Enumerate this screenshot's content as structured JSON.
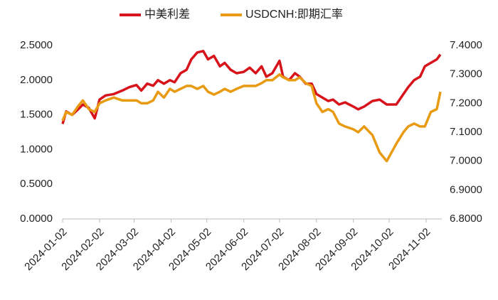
{
  "chart_data": {
    "type": "line",
    "x": [
      "2024-01-02",
      "2024-01-05",
      "2024-01-10",
      "2024-01-15",
      "2024-01-19",
      "2024-01-24",
      "2024-01-29",
      "2024-02-02",
      "2024-02-07",
      "2024-02-14",
      "2024-02-21",
      "2024-02-27",
      "2024-03-04",
      "2024-03-08",
      "2024-03-13",
      "2024-03-18",
      "2024-03-22",
      "2024-03-27",
      "2024-04-01",
      "2024-04-05",
      "2024-04-10",
      "2024-04-15",
      "2024-04-19",
      "2024-04-24",
      "2024-04-29",
      "2024-05-03",
      "2024-05-08",
      "2024-05-13",
      "2024-05-17",
      "2024-05-22",
      "2024-05-27",
      "2024-06-02",
      "2024-06-07",
      "2024-06-12",
      "2024-06-17",
      "2024-06-21",
      "2024-06-26",
      "2024-07-02",
      "2024-07-05",
      "2024-07-10",
      "2024-07-15",
      "2024-07-19",
      "2024-07-24",
      "2024-07-29",
      "2024-08-02",
      "2024-08-07",
      "2024-08-12",
      "2024-08-16",
      "2024-08-21",
      "2024-08-26",
      "2024-09-02",
      "2024-09-06",
      "2024-09-11",
      "2024-09-18",
      "2024-09-24",
      "2024-09-30",
      "2024-10-08",
      "2024-10-14",
      "2024-10-18",
      "2024-10-23",
      "2024-10-28",
      "2024-11-01",
      "2024-11-06",
      "2024-11-11",
      "2024-11-14"
    ],
    "series": [
      {
        "name": "中美利差",
        "color": "#d7141c",
        "values": [
          1.37,
          1.55,
          1.5,
          1.58,
          1.65,
          1.6,
          1.45,
          1.72,
          1.78,
          1.8,
          1.85,
          1.9,
          1.93,
          1.85,
          1.95,
          1.92,
          2.0,
          1.95,
          2.0,
          1.97,
          2.1,
          2.15,
          2.3,
          2.4,
          2.42,
          2.3,
          2.35,
          2.2,
          2.25,
          2.15,
          2.1,
          2.12,
          2.18,
          2.1,
          2.2,
          2.05,
          2.1,
          2.28,
          2.05,
          2.0,
          2.1,
          2.05,
          1.95,
          1.95,
          1.8,
          1.75,
          1.7,
          1.72,
          1.65,
          1.68,
          1.62,
          1.58,
          1.62,
          1.7,
          1.72,
          1.65,
          1.65,
          1.8,
          1.9,
          2.0,
          2.05,
          2.2,
          2.25,
          2.3,
          2.37
        ]
      },
      {
        "name": "USDCNH:即期汇率",
        "color": "#e89b12",
        "axis": "y2",
        "values": [
          7.14,
          7.17,
          7.16,
          7.19,
          7.21,
          7.18,
          7.17,
          7.2,
          7.21,
          7.22,
          7.21,
          7.21,
          7.21,
          7.2,
          7.2,
          7.21,
          7.24,
          7.22,
          7.25,
          7.24,
          7.25,
          7.26,
          7.26,
          7.25,
          7.26,
          7.24,
          7.23,
          7.24,
          7.25,
          7.24,
          7.25,
          7.26,
          7.26,
          7.26,
          7.27,
          7.28,
          7.28,
          7.3,
          7.29,
          7.28,
          7.28,
          7.29,
          7.27,
          7.26,
          7.2,
          7.17,
          7.18,
          7.17,
          7.13,
          7.12,
          7.11,
          7.1,
          7.12,
          7.09,
          7.03,
          7.0,
          7.06,
          7.1,
          7.12,
          7.13,
          7.12,
          7.12,
          7.17,
          7.18,
          7.24
        ]
      }
    ],
    "xlim": [
      "2024-01-02",
      "2024-11-14"
    ],
    "xticks": [
      "2024-01-02",
      "2024-02-02",
      "2024-03-02",
      "2024-04-02",
      "2024-05-02",
      "2024-06-02",
      "2024-07-02",
      "2024-08-02",
      "2024-09-02",
      "2024-10-02",
      "2024-11-02"
    ],
    "ylim": [
      0,
      2.5
    ],
    "yticks": [
      {
        "value": 0,
        "label": "0.0000"
      },
      {
        "value": 0.5,
        "label": "0.5000"
      },
      {
        "value": 1,
        "label": "1.0000"
      },
      {
        "value": 1.5,
        "label": "1.5000"
      },
      {
        "value": 2,
        "label": "2.0000"
      },
      {
        "value": 2.5,
        "label": "2.5000"
      }
    ],
    "y2lim": [
      6.8,
      7.4
    ],
    "y2ticks": [
      {
        "value": 6.8,
        "label": "6.8000"
      },
      {
        "value": 6.9,
        "label": "6.9000"
      },
      {
        "value": 7,
        "label": "7.0000"
      },
      {
        "value": 7.1,
        "label": "7.1000"
      },
      {
        "value": 7.2,
        "label": "7.2000"
      },
      {
        "value": 7.3,
        "label": "7.3000"
      },
      {
        "value": 7.4,
        "label": "7.4000"
      }
    ],
    "legend": "top"
  }
}
